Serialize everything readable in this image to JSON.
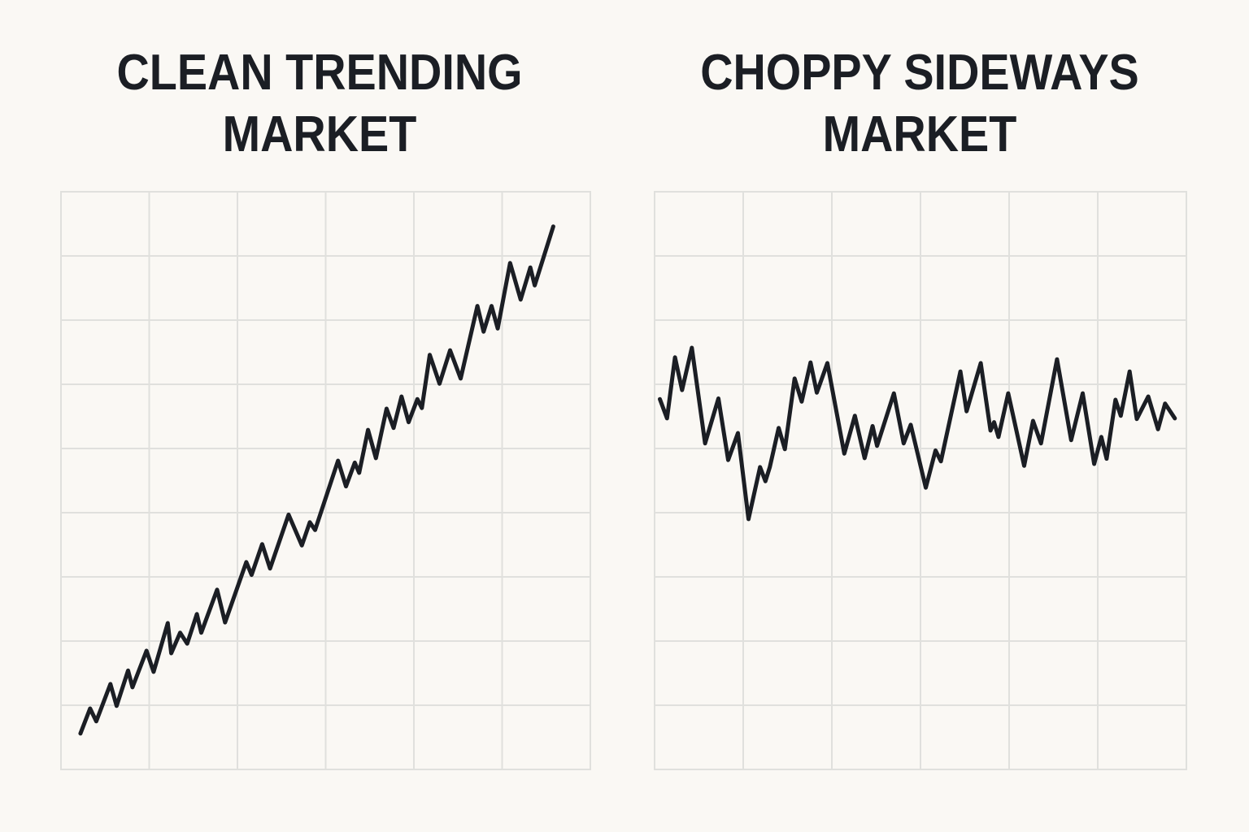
{
  "chart_data": [
    {
      "type": "line",
      "title": "CLEAN TRENDING MARKET",
      "color": "#1b1e24",
      "grid": true,
      "xlim": [
        0,
        6
      ],
      "ylim": [
        0,
        9
      ],
      "xticks": [
        1,
        2,
        3,
        4,
        5
      ],
      "yticks": [
        1,
        2,
        3,
        4,
        5,
        6,
        7,
        8
      ],
      "x": [
        0.22,
        0.33,
        0.4,
        0.56,
        0.63,
        0.76,
        0.81,
        0.97,
        1.05,
        1.21,
        1.25,
        1.35,
        1.43,
        1.54,
        1.59,
        1.77,
        1.86,
        2.1,
        2.16,
        2.28,
        2.37,
        2.58,
        2.73,
        2.82,
        2.88,
        3.14,
        3.23,
        3.33,
        3.38,
        3.48,
        3.57,
        3.69,
        3.77,
        3.86,
        3.94,
        4.04,
        4.09,
        4.18,
        4.29,
        4.41,
        4.53,
        4.72,
        4.79,
        4.88,
        4.95,
        5.09,
        5.21,
        5.32,
        5.37,
        5.58
      ],
      "values": [
        0.56,
        0.95,
        0.75,
        1.33,
        0.99,
        1.54,
        1.28,
        1.85,
        1.52,
        2.28,
        1.81,
        2.13,
        1.96,
        2.42,
        2.13,
        2.8,
        2.29,
        3.23,
        3.03,
        3.51,
        3.13,
        3.97,
        3.49,
        3.85,
        3.73,
        4.81,
        4.41,
        4.78,
        4.62,
        5.29,
        4.85,
        5.62,
        5.32,
        5.81,
        5.41,
        5.77,
        5.63,
        6.46,
        6.01,
        6.53,
        6.09,
        7.22,
        6.82,
        7.22,
        6.87,
        7.89,
        7.32,
        7.82,
        7.54,
        8.46
      ]
    },
    {
      "type": "line",
      "title": "CHOPPY SIDEWAYS MARKET",
      "color": "#1b1e24",
      "grid": true,
      "xlim": [
        0,
        6
      ],
      "ylim": [
        0,
        9
      ],
      "xticks": [
        1,
        2,
        3,
        4,
        5
      ],
      "yticks": [
        1,
        2,
        3,
        4,
        5,
        6,
        7,
        8
      ],
      "x": [
        0.06,
        0.14,
        0.23,
        0.31,
        0.42,
        0.57,
        0.72,
        0.83,
        0.94,
        1.06,
        1.19,
        1.25,
        1.3,
        1.4,
        1.47,
        1.58,
        1.66,
        1.76,
        1.83,
        1.95,
        2.14,
        2.26,
        2.37,
        2.46,
        2.51,
        2.7,
        2.81,
        2.89,
        3.06,
        3.17,
        3.23,
        3.45,
        3.52,
        3.68,
        3.79,
        3.83,
        3.88,
        3.99,
        4.17,
        4.27,
        4.36,
        4.54,
        4.7,
        4.83,
        4.96,
        5.04,
        5.1,
        5.2,
        5.26,
        5.36,
        5.44,
        5.57,
        5.68,
        5.76,
        5.87
      ],
      "values": [
        5.77,
        5.47,
        6.42,
        5.91,
        6.57,
        5.08,
        5.78,
        4.82,
        5.24,
        3.9,
        4.71,
        4.49,
        4.71,
        5.32,
        4.99,
        6.09,
        5.73,
        6.34,
        5.87,
        6.33,
        4.92,
        5.51,
        4.85,
        5.35,
        5.04,
        5.86,
        5.08,
        5.37,
        4.39,
        4.97,
        4.8,
        6.2,
        5.58,
        6.33,
        5.28,
        5.41,
        5.18,
        5.86,
        4.73,
        5.43,
        5.08,
        6.39,
        5.13,
        5.86,
        4.76,
        5.18,
        4.84,
        5.76,
        5.51,
        6.2,
        5.46,
        5.81,
        5.3,
        5.7,
        5.47
      ]
    }
  ]
}
